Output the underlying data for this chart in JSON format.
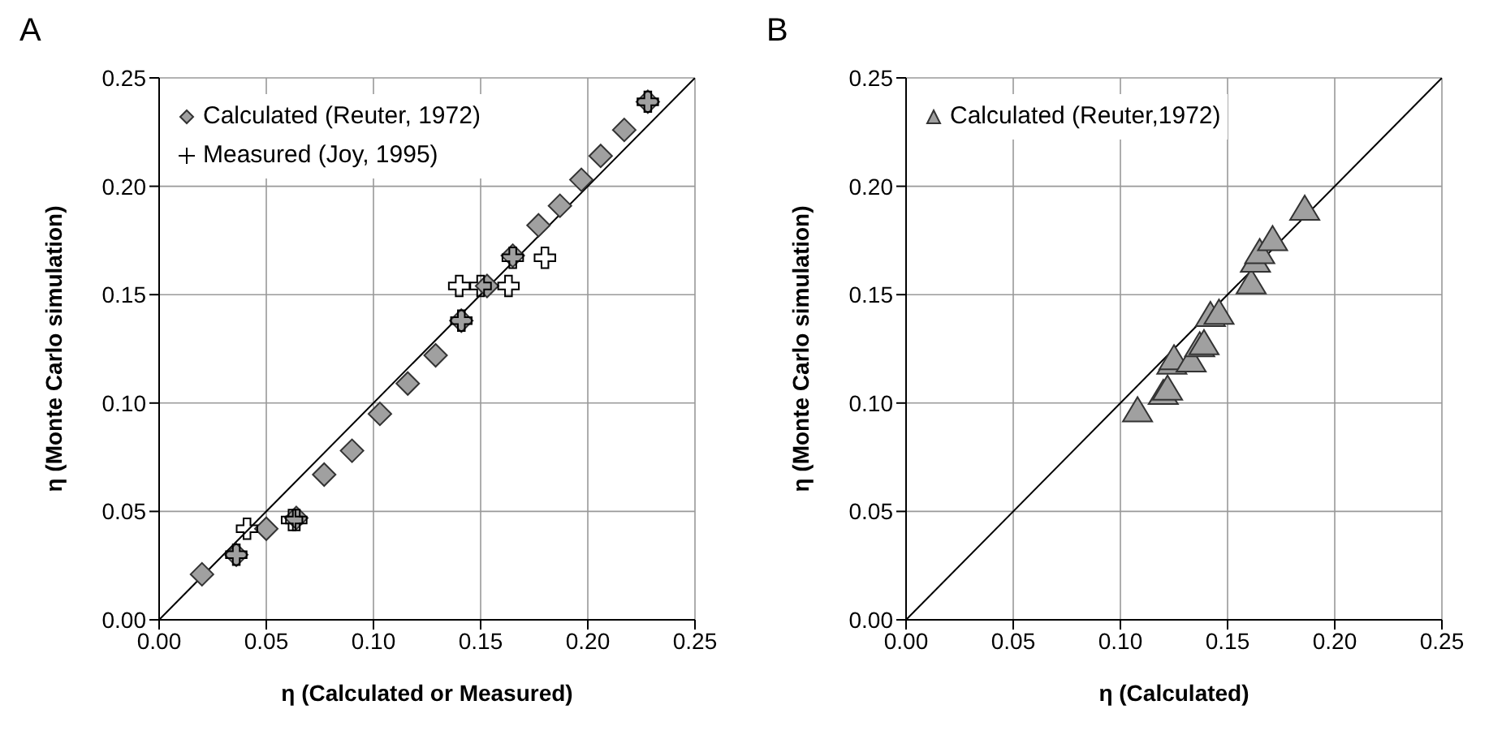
{
  "chart_data": [
    {
      "type": "scatter",
      "title": "A",
      "xlabel": "η (Calculated or Measured)",
      "ylabel": "η (Monte Carlo simulation)",
      "xlim": [
        0,
        0.25
      ],
      "ylim": [
        0,
        0.25
      ],
      "xticks": [
        {
          "value": 0,
          "label": "0.00"
        },
        0.05,
        {
          "value": 0.1,
          "label": "0.10"
        },
        0.15,
        {
          "value": 0.2,
          "label": "0.20"
        },
        0.25
      ],
      "yticks": [
        {
          "value": 0,
          "label": "0.00"
        },
        0.05,
        {
          "value": 0.1,
          "label": "0.10"
        },
        0.15,
        {
          "value": 0.2,
          "label": "0.20"
        },
        0.25
      ],
      "grid": true,
      "legend": "top left",
      "series": [
        {
          "type": "line",
          "color": "#000000",
          "x": [
            0,
            0.25
          ],
          "values": [
            0,
            0.25
          ],
          "marker": "none"
        },
        {
          "name": "Calculated (Reuter, 1972)",
          "color": "#a0a0a0",
          "marker": "diamond",
          "x": [
            0.02,
            0.036,
            0.05,
            0.064,
            0.077,
            0.09,
            0.103,
            0.116,
            0.129,
            0.141,
            0.153,
            0.165,
            0.177,
            0.187,
            0.197,
            0.206,
            0.217,
            0.228
          ],
          "values": [
            0.021,
            0.03,
            0.042,
            0.047,
            0.067,
            0.078,
            0.095,
            0.109,
            0.122,
            0.138,
            0.154,
            0.168,
            0.182,
            0.191,
            0.203,
            0.214,
            0.226,
            0.239
          ]
        },
        {
          "name": "Measured (Joy, 1995)",
          "color": "#000000",
          "marker": "cross",
          "x": [
            0.041,
            0.036,
            0.062,
            0.064,
            0.141,
            0.14,
            0.15,
            0.165,
            0.163,
            0.18,
            0.228
          ],
          "values": [
            0.042,
            0.03,
            0.046,
            0.046,
            0.138,
            0.154,
            0.154,
            0.167,
            0.154,
            0.167,
            0.239
          ]
        }
      ]
    },
    {
      "type": "scatter",
      "title": "B",
      "xlabel": "η (Calculated)",
      "ylabel": "η (Monte Carlo simulation)",
      "xlim": [
        0,
        0.25
      ],
      "ylim": [
        0,
        0.25
      ],
      "xticks": [
        {
          "value": 0,
          "label": "0.00"
        },
        0.05,
        {
          "value": 0.1,
          "label": "0.10"
        },
        0.15,
        {
          "value": 0.2,
          "label": "0.20"
        },
        0.25
      ],
      "yticks": [
        {
          "value": 0,
          "label": "0.00"
        },
        0.05,
        {
          "value": 0.1,
          "label": "0.10"
        },
        0.15,
        {
          "value": 0.2,
          "label": "0.20"
        },
        0.25
      ],
      "grid": true,
      "legend": "top left",
      "series": [
        {
          "type": "line",
          "color": "#000000",
          "x": [
            0,
            0.25
          ],
          "values": [
            0,
            0.25
          ],
          "marker": "none"
        },
        {
          "name": "Calculated (Reuter,1972)",
          "color": "#a0a0a0",
          "marker": "triangle",
          "x": [
            0.108,
            0.12,
            0.122,
            0.124,
            0.125,
            0.133,
            0.137,
            0.139,
            0.142,
            0.146,
            0.161,
            0.163,
            0.165,
            0.171,
            0.186
          ],
          "values": [
            0.096,
            0.104,
            0.106,
            0.118,
            0.12,
            0.119,
            0.126,
            0.127,
            0.14,
            0.141,
            0.155,
            0.165,
            0.169,
            0.175,
            0.189
          ]
        }
      ]
    }
  ]
}
